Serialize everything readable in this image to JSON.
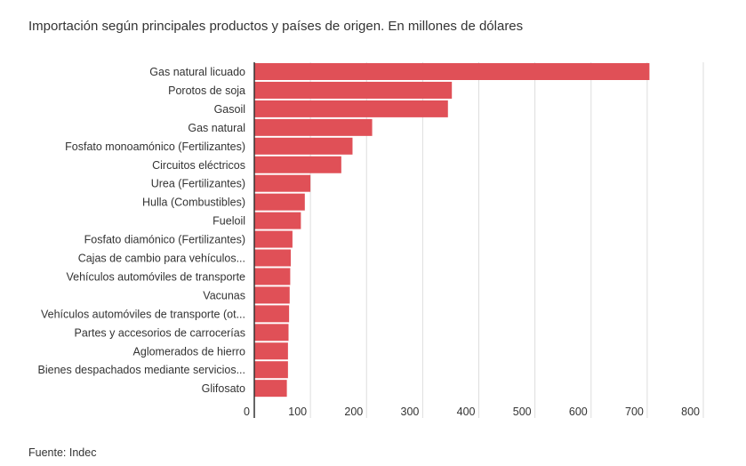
{
  "title": "Importación según principales productos y países de origen. En millones de dólares",
  "source": "Fuente: Indec",
  "colors": {
    "bar": "#e05057",
    "grid": "#dddddd",
    "axis": "#333333",
    "text": "#333333"
  },
  "chart_data": {
    "type": "bar",
    "orientation": "horizontal",
    "title": "Importación según principales productos y países de origen. En millones de dólares",
    "xlim": [
      0,
      800
    ],
    "xticks": [
      0,
      100,
      200,
      300,
      400,
      500,
      600,
      700,
      800
    ],
    "grid": true,
    "categories": [
      "Gas natural licuado",
      "Porotos de soja",
      "Gasoil",
      "Gas natural",
      "Fosfato monoamónico (Fertilizantes)",
      "Circuitos eléctricos",
      "Urea (Fertilizantes)",
      "Hulla (Combustibles)",
      "Fueloil",
      "Fosfato diamónico (Fertilizantes)",
      "Cajas de cambio para vehículos...",
      "Vehículos automóviles de transporte",
      "Vacunas",
      "Vehículos automóviles de transporte (ot...",
      "Partes y accesorios de carrocerías",
      "Aglomerados de hierro",
      "Bienes despachados mediante servicios...",
      "Glifosato"
    ],
    "values": [
      704,
      352,
      345,
      210,
      175,
      155,
      100,
      90,
      83,
      68,
      65,
      64,
      63,
      62,
      61,
      60,
      60,
      58
    ]
  }
}
